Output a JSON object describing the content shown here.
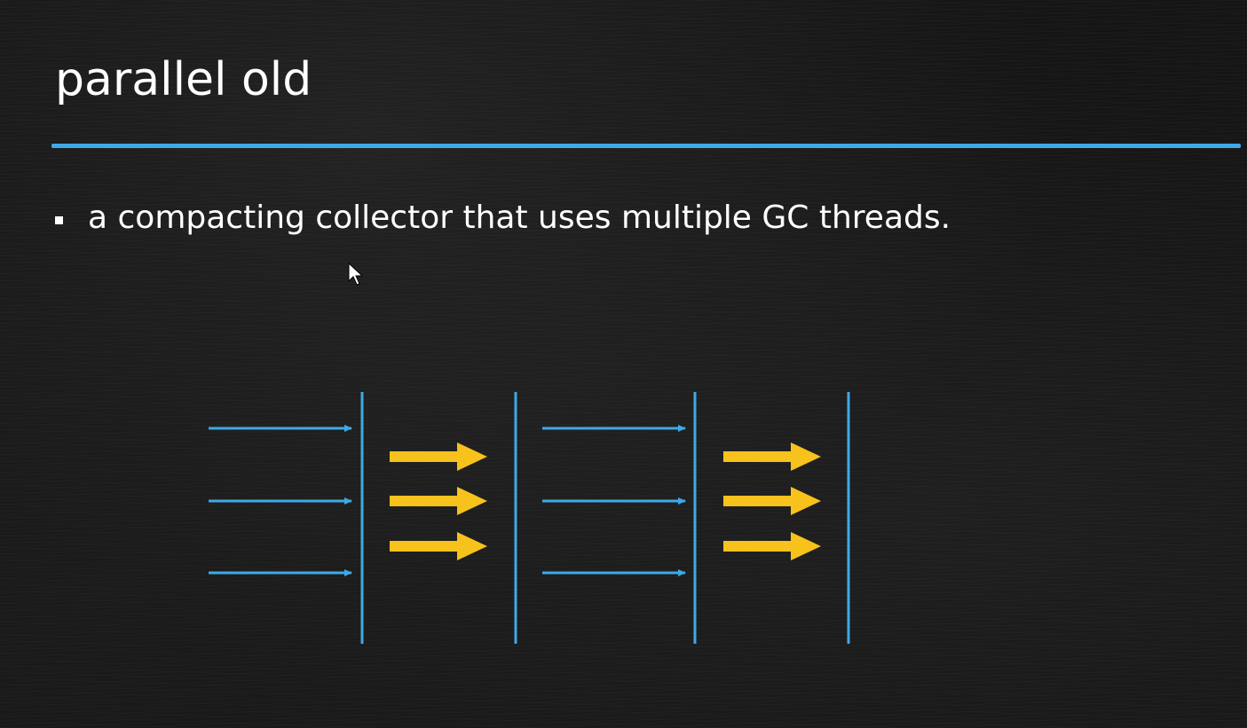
{
  "slide": {
    "title": "parallel old",
    "bullets": [
      "a compacting collector that uses multiple GC threads."
    ]
  },
  "colors": {
    "background": "#151515",
    "text": "#ffffff",
    "accent_blue": "#3fa9e6",
    "accent_yellow": "#f7c21b"
  },
  "diagram": {
    "description_icons": [
      "thin-blue-arrow",
      "thick-yellow-arrow",
      "vertical-blue-divider"
    ],
    "stages": [
      {
        "kind": "application-threads",
        "arrow_count": 3
      },
      {
        "kind": "gc-threads",
        "arrow_count": 3
      },
      {
        "kind": "application-threads",
        "arrow_count": 3
      },
      {
        "kind": "gc-threads",
        "arrow_count": 3
      }
    ],
    "divider_count": 4
  }
}
